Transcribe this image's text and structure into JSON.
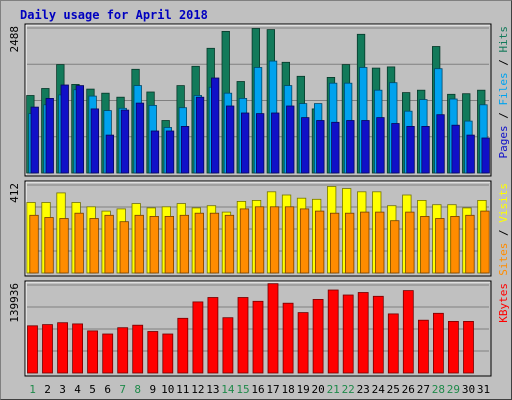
{
  "chart_data": {
    "type": "bar",
    "title": "Daily usage for April 2018",
    "categories": [
      "1",
      "2",
      "3",
      "4",
      "5",
      "6",
      "7",
      "8",
      "9",
      "10",
      "11",
      "12",
      "13",
      "14",
      "15",
      "16",
      "17",
      "18",
      "19",
      "20",
      "21",
      "22",
      "23",
      "24",
      "25",
      "26",
      "27",
      "28",
      "29",
      "30",
      "31"
    ],
    "weekend_days": [
      "1",
      "7",
      "8",
      "14",
      "15",
      "21",
      "22",
      "28",
      "29"
    ],
    "panels": [
      {
        "name": "pages-files-hits",
        "max_label": "2488",
        "ylim": [
          0,
          2488
        ],
        "legend": [
          "Pages",
          "Files",
          "Hits"
        ],
        "series": [
          {
            "name": "Hits",
            "color": "#127a5a",
            "values": [
              1330,
              1450,
              1860,
              1520,
              1440,
              1370,
              1300,
              1780,
              1390,
              900,
              1500,
              1830,
              2140,
              2430,
              1570,
              2480,
              2460,
              1900,
              1660,
              1100,
              1640,
              1860,
              2380,
              1800,
              1820,
              1380,
              1420,
              2170,
              1350,
              1360,
              1420
            ]
          },
          {
            "name": "Files",
            "color": "#00a2ee",
            "values": [
              1020,
              1170,
              1340,
              1430,
              1320,
              1070,
              1110,
              1500,
              1160,
              780,
              1120,
              1330,
              1470,
              1370,
              1280,
              1810,
              1920,
              1500,
              1190,
              1190,
              1540,
              1540,
              1810,
              1420,
              1550,
              1060,
              1260,
              1790,
              1270,
              890,
              1170
            ]
          },
          {
            "name": "Pages",
            "color": "#1010c8",
            "values": [
              1130,
              1280,
              1510,
              1500,
              1100,
              650,
              1080,
              1200,
              720,
              720,
              800,
              1300,
              1630,
              1150,
              1030,
              1020,
              1030,
              1150,
              950,
              900,
              870,
              900,
              900,
              950,
              850,
              800,
              800,
              1000,
              820,
              650,
              600
            ]
          }
        ]
      },
      {
        "name": "sites-visits",
        "max_label": "412",
        "ylim": [
          0,
          412
        ],
        "legend": [
          "Sites",
          "Visits"
        ],
        "series": [
          {
            "name": "Visits",
            "color": "#ffff00",
            "values": [
              330,
              330,
              375,
              330,
              310,
              290,
              300,
              325,
              305,
              310,
              325,
              305,
              315,
              285,
              335,
              340,
              380,
              365,
              350,
              345,
              405,
              395,
              380,
              380,
              315,
              365,
              340,
              320,
              320,
              305,
              340
            ]
          },
          {
            "name": "Sites",
            "color": "#ff8c00",
            "values": [
              270,
              260,
              255,
              280,
              255,
              270,
              240,
              270,
              265,
              265,
              270,
              280,
              280,
              270,
              300,
              310,
              310,
              310,
              300,
              290,
              280,
              280,
              285,
              285,
              245,
              285,
              265,
              255,
              265,
              270,
              290
            ]
          }
        ]
      },
      {
        "name": "kbytes",
        "max_label": "139936",
        "ylim": [
          0,
          139936
        ],
        "legend": [
          "KBytes"
        ],
        "series": [
          {
            "name": "KBytes",
            "color": "#ff0000",
            "values": [
              75000,
              77000,
              80000,
              78000,
              67000,
              62000,
              72000,
              76000,
              66000,
              62000,
              87000,
              113000,
              120000,
              88000,
              120000,
              114000,
              142000,
              111000,
              96000,
              117000,
              132000,
              124000,
              128000,
              122000,
              94000,
              131000,
              84000,
              95000,
              82000,
              82000,
              0
            ]
          }
        ]
      }
    ]
  }
}
